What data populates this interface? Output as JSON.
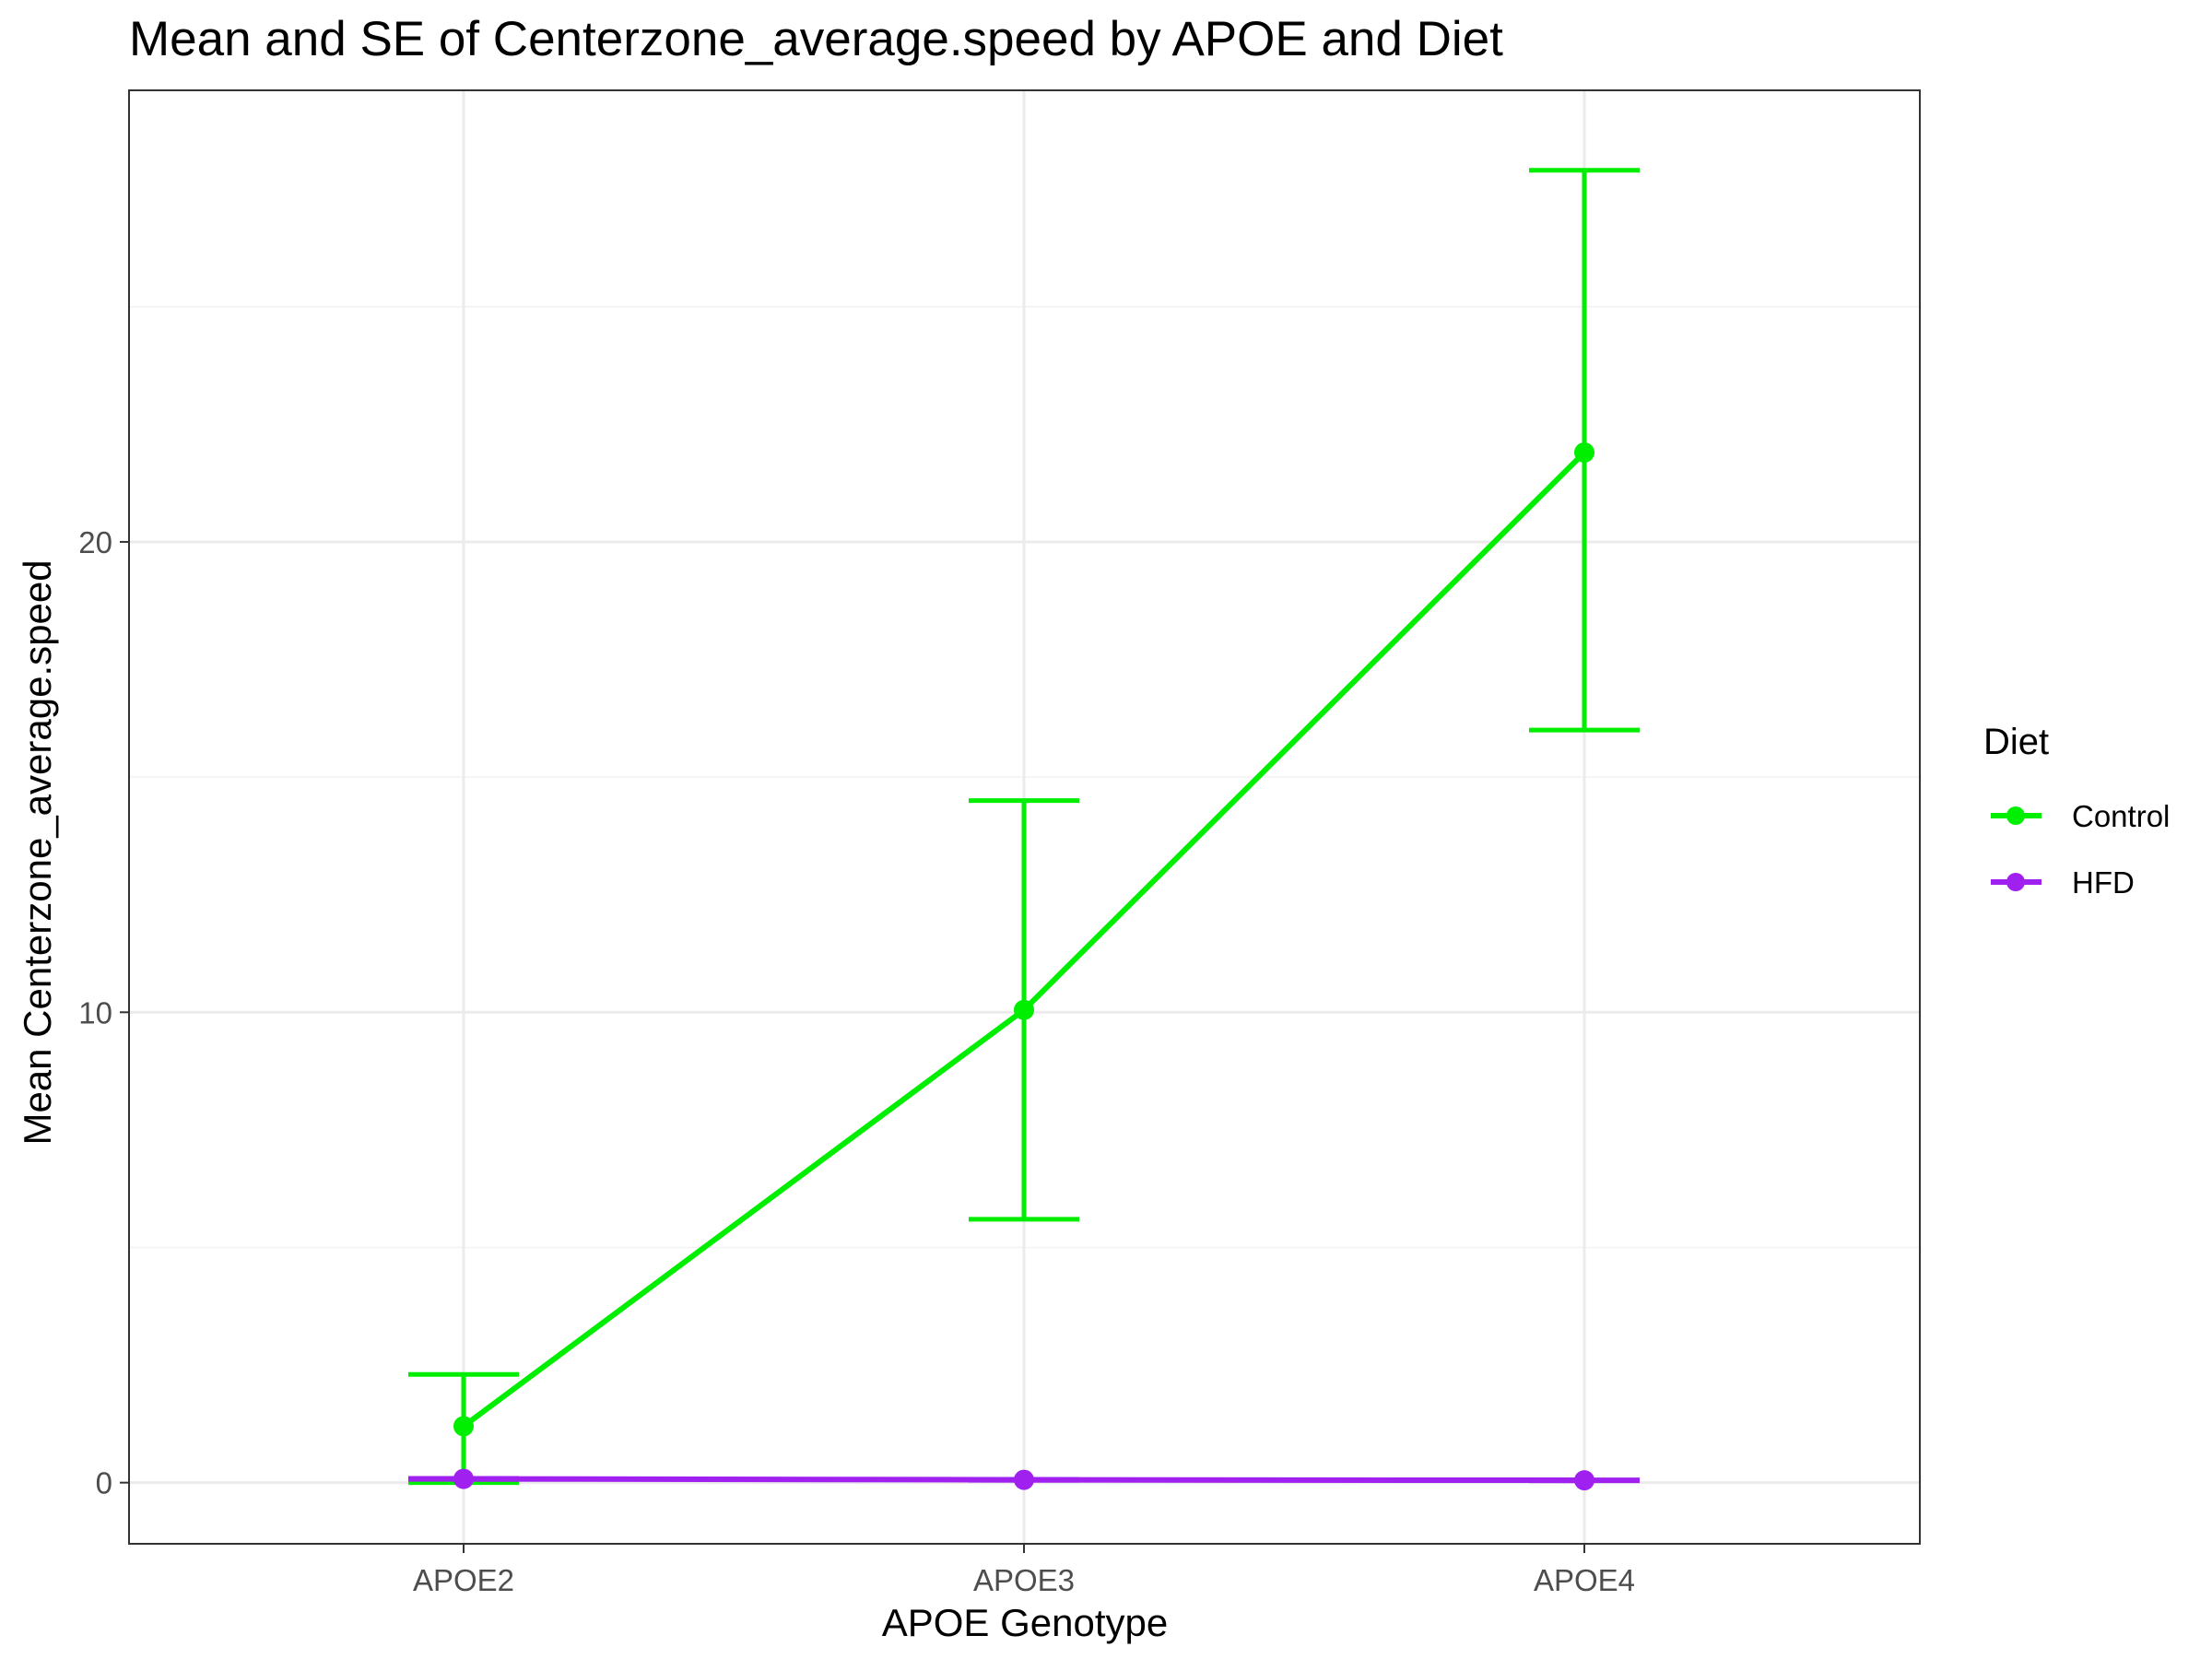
{
  "chart_data": {
    "type": "line",
    "title": "Mean and SE of Centerzone_average.speed by APOE and Diet",
    "xlabel": "APOE Genotype",
    "ylabel": "Mean Centerzone_average.speed",
    "categories": [
      "APOE2",
      "APOE3",
      "APOE4"
    ],
    "ylim": [
      -1.3,
      29.6
    ],
    "yticks": [
      0,
      10,
      20
    ],
    "ytick_labels": [
      "0",
      "10",
      "20"
    ],
    "grid": true,
    "legend": {
      "title": "Diet",
      "position": "right"
    },
    "series": [
      {
        "name": "Control",
        "color": "#00ee00",
        "values": [
          1.2,
          10.05,
          21.9
        ],
        "error_low": [
          0.0,
          5.6,
          16.0
        ],
        "error_high": [
          2.3,
          14.5,
          27.9
        ]
      },
      {
        "name": "HFD",
        "color": "#a020f0",
        "values": [
          0.08,
          0.06,
          0.05
        ],
        "error_low": [
          0.07,
          0.05,
          0.04
        ],
        "error_high": [
          0.09,
          0.07,
          0.06
        ]
      }
    ]
  }
}
